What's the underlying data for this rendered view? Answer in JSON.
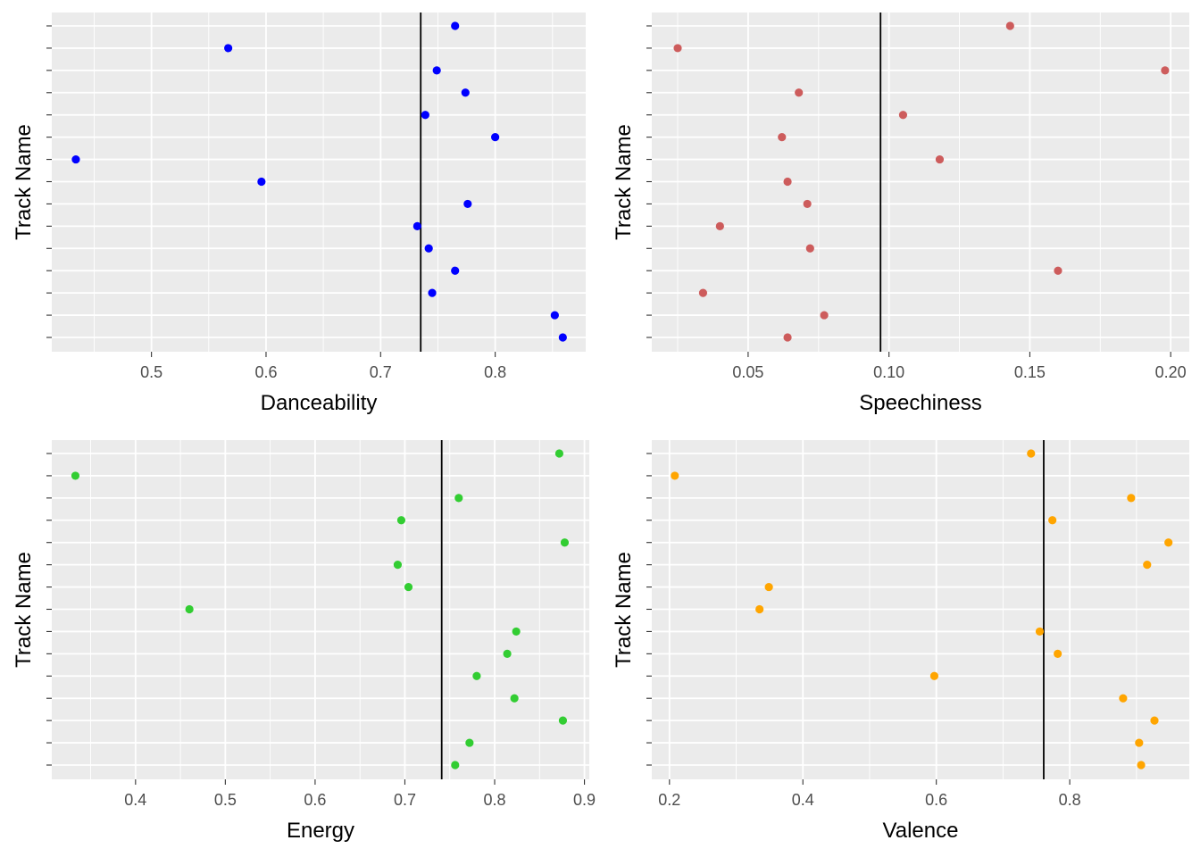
{
  "chart_data": [
    {
      "type": "scatter",
      "xlabel": "Danceability",
      "ylabel": "Track Name",
      "x_ticks": [
        0.5,
        0.6,
        0.7,
        0.8
      ],
      "x_tick_labels": [
        "0.5",
        "0.6",
        "0.7",
        "0.8"
      ],
      "xlim": [
        0.413,
        0.879
      ],
      "reference_line_x": 0.735,
      "point_color": "#0000ff",
      "values": [
        0.765,
        0.567,
        0.749,
        0.774,
        0.739,
        0.8,
        0.434,
        0.596,
        0.776,
        0.732,
        0.742,
        0.765,
        0.745,
        0.852,
        0.859
      ],
      "y_tick_count": 15,
      "grid": true
    },
    {
      "type": "scatter",
      "xlabel": "Speechiness",
      "ylabel": "Track Name",
      "x_ticks": [
        0.05,
        0.1,
        0.15,
        0.2
      ],
      "x_tick_labels": [
        "0.05",
        "0.10",
        "0.15",
        "0.20"
      ],
      "xlim": [
        0.0158,
        0.2066
      ],
      "reference_line_x": 0.097,
      "point_color": "#cd5c5c",
      "values": [
        0.143,
        0.025,
        0.198,
        0.068,
        0.105,
        0.062,
        0.118,
        0.064,
        0.071,
        0.04,
        0.072,
        0.16,
        0.034,
        0.077,
        0.064
      ],
      "y_tick_count": 15,
      "grid": true
    },
    {
      "type": "scatter",
      "xlabel": "Energy",
      "ylabel": "Track Name",
      "x_ticks": [
        0.4,
        0.5,
        0.6,
        0.7,
        0.8,
        0.9
      ],
      "x_tick_labels": [
        "0.4",
        "0.5",
        "0.6",
        "0.7",
        "0.8",
        "0.9"
      ],
      "xlim": [
        0.3067,
        0.9054
      ],
      "reference_line_x": 0.741,
      "point_color": "#32cd32",
      "values": [
        0.872,
        0.333,
        0.76,
        0.696,
        0.878,
        0.692,
        0.704,
        0.46,
        0.824,
        0.814,
        0.78,
        0.822,
        0.876,
        0.772,
        0.756
      ],
      "y_tick_count": 15,
      "grid": true
    },
    {
      "type": "scatter",
      "xlabel": "Valence",
      "ylabel": "Track Name",
      "x_ticks": [
        0.2,
        0.4,
        0.6,
        0.8
      ],
      "x_tick_labels": [
        "0.2",
        "0.4",
        "0.6",
        "0.8"
      ],
      "xlim": [
        0.1735,
        0.9792
      ],
      "reference_line_x": 0.761,
      "point_color": "#ffa500",
      "values": [
        0.742,
        0.208,
        0.892,
        0.774,
        0.948,
        0.916,
        0.349,
        0.335,
        0.755,
        0.782,
        0.597,
        0.88,
        0.927,
        0.904,
        0.907
      ],
      "y_tick_count": 15,
      "grid": true
    }
  ]
}
